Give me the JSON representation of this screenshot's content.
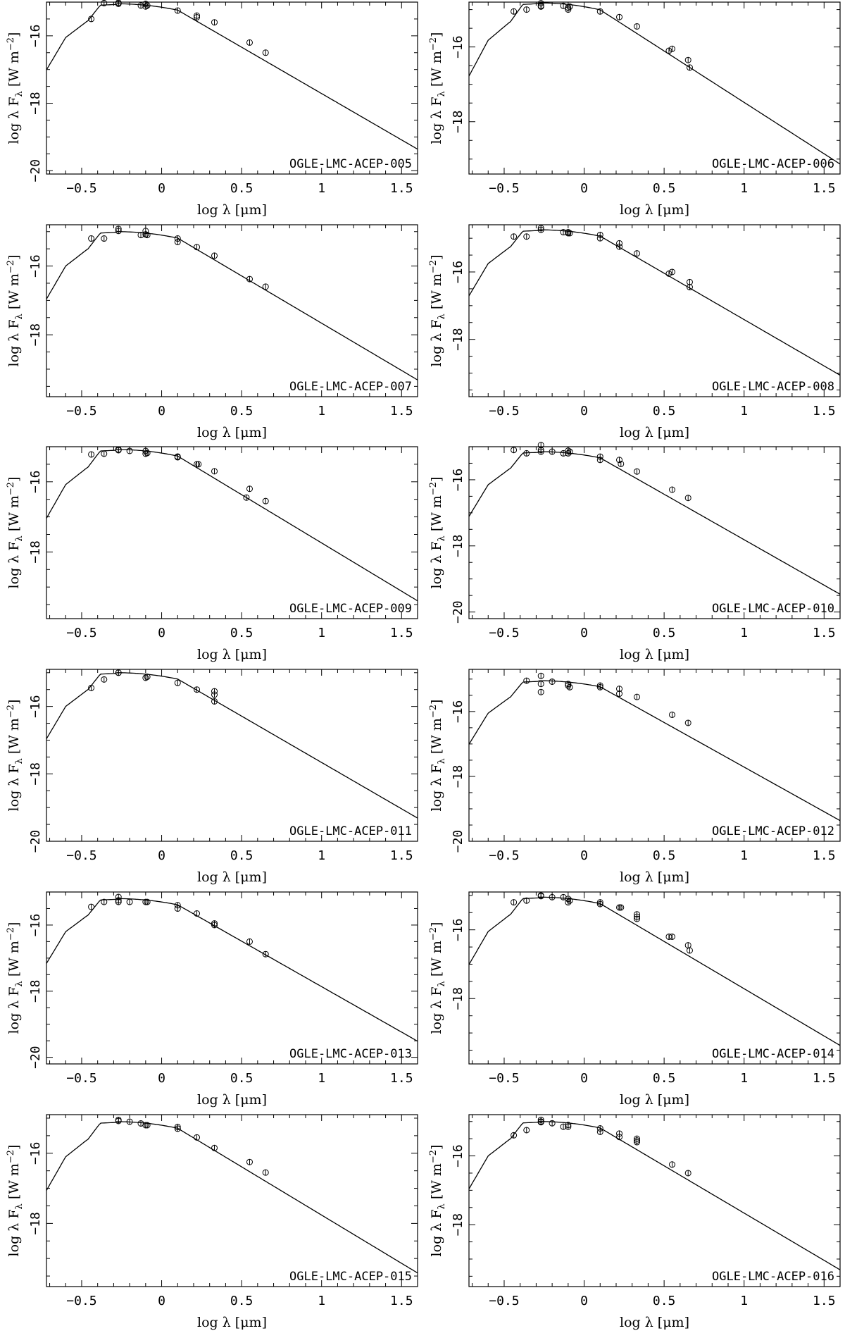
{
  "figure": {
    "xlabel_prefix": "log λ [",
    "xlabel_unit": "μm",
    "xlabel_suffix": "]",
    "ylabel_prefix": "log λ F",
    "ylabel_sub": "λ",
    "ylabel_mid": " [W m",
    "ylabel_sup": "−2",
    "ylabel_end": "]",
    "x_ticks": [
      "−0.5",
      "0",
      "0.5",
      "1",
      "1.5"
    ]
  },
  "chart_data": [
    {
      "type": "scatter",
      "name": "OGLE-LMC-ACEP-005",
      "xlim": [
        -0.72,
        1.6
      ],
      "ylim": [
        -20.1,
        -15.0
      ],
      "y_ticks": [
        -16,
        -18,
        -20
      ],
      "model_peak": -15.05,
      "points": [
        [
          -0.44,
          -15.5
        ],
        [
          -0.36,
          -15.03
        ],
        [
          -0.27,
          -15.02
        ],
        [
          -0.27,
          -15.05
        ],
        [
          -0.13,
          -15.1
        ],
        [
          -0.1,
          -15.05
        ],
        [
          -0.1,
          -15.13
        ],
        [
          -0.09,
          -15.1
        ],
        [
          0.1,
          -15.25
        ],
        [
          0.22,
          -15.4
        ],
        [
          0.22,
          -15.45
        ],
        [
          0.33,
          -15.6
        ],
        [
          0.55,
          -16.2
        ],
        [
          0.65,
          -16.5
        ]
      ]
    },
    {
      "type": "scatter",
      "name": "OGLE-LMC-ACEP-006",
      "xlim": [
        -0.72,
        1.6
      ],
      "ylim": [
        -19.4,
        -14.8
      ],
      "y_ticks": [
        -16,
        -18
      ],
      "model_peak": -14.82,
      "points": [
        [
          -0.44,
          -15.05
        ],
        [
          -0.36,
          -15.0
        ],
        [
          -0.27,
          -14.83
        ],
        [
          -0.27,
          -14.9
        ],
        [
          -0.27,
          -14.92
        ],
        [
          -0.13,
          -14.9
        ],
        [
          -0.1,
          -14.95
        ],
        [
          -0.1,
          -15.0
        ],
        [
          -0.09,
          -14.92
        ],
        [
          0.1,
          -15.05
        ],
        [
          0.22,
          -15.2
        ],
        [
          0.33,
          -15.45
        ],
        [
          0.53,
          -16.1
        ],
        [
          0.55,
          -16.05
        ],
        [
          0.65,
          -16.35
        ],
        [
          0.66,
          -16.55
        ]
      ]
    },
    {
      "type": "scatter",
      "name": "OGLE-LMC-ACEP-007",
      "xlim": [
        -0.72,
        1.6
      ],
      "ylim": [
        -19.8,
        -14.8
      ],
      "y_ticks": [
        -16,
        -18
      ],
      "model_peak": -15.0,
      "points": [
        [
          -0.44,
          -15.2
        ],
        [
          -0.36,
          -15.2
        ],
        [
          -0.27,
          -14.92
        ],
        [
          -0.27,
          -14.98
        ],
        [
          -0.13,
          -15.1
        ],
        [
          -0.1,
          -14.98
        ],
        [
          -0.1,
          -15.08
        ],
        [
          -0.09,
          -15.1
        ],
        [
          0.1,
          -15.2
        ],
        [
          0.1,
          -15.3
        ],
        [
          0.22,
          -15.45
        ],
        [
          0.33,
          -15.7
        ],
        [
          0.55,
          -16.38
        ],
        [
          0.65,
          -16.6
        ]
      ]
    },
    {
      "type": "scatter",
      "name": "OGLE-LMC-ACEP-008",
      "xlim": [
        -0.72,
        1.6
      ],
      "ylim": [
        -19.7,
        -14.6
      ],
      "y_ticks": [
        -16,
        -18
      ],
      "model_peak": -14.75,
      "points": [
        [
          -0.44,
          -14.95
        ],
        [
          -0.36,
          -14.95
        ],
        [
          -0.27,
          -14.7
        ],
        [
          -0.27,
          -14.75
        ],
        [
          -0.13,
          -14.82
        ],
        [
          -0.1,
          -14.85
        ],
        [
          -0.1,
          -14.82
        ],
        [
          -0.09,
          -14.85
        ],
        [
          0.1,
          -14.9
        ],
        [
          0.1,
          -15.0
        ],
        [
          0.22,
          -15.15
        ],
        [
          0.22,
          -15.25
        ],
        [
          0.33,
          -15.45
        ],
        [
          0.53,
          -16.05
        ],
        [
          0.55,
          -16.0
        ],
        [
          0.66,
          -16.3
        ],
        [
          0.66,
          -16.45
        ]
      ]
    },
    {
      "type": "scatter",
      "name": "OGLE-LMC-ACEP-009",
      "xlim": [
        -0.72,
        1.6
      ],
      "ylim": [
        -19.9,
        -15.0
      ],
      "y_ticks": [
        -16,
        -18
      ],
      "model_peak": -15.08,
      "points": [
        [
          -0.44,
          -15.22
        ],
        [
          -0.36,
          -15.2
        ],
        [
          -0.27,
          -15.08
        ],
        [
          -0.27,
          -15.1
        ],
        [
          -0.2,
          -15.12
        ],
        [
          -0.1,
          -15.12
        ],
        [
          -0.1,
          -15.2
        ],
        [
          -0.09,
          -15.18
        ],
        [
          0.1,
          -15.3
        ],
        [
          0.1,
          -15.28
        ],
        [
          0.22,
          -15.5
        ],
        [
          0.23,
          -15.5
        ],
        [
          0.33,
          -15.7
        ],
        [
          0.53,
          -16.45
        ],
        [
          0.55,
          -16.2
        ],
        [
          0.65,
          -16.55
        ]
      ]
    },
    {
      "type": "scatter",
      "name": "OGLE-LMC-ACEP-010",
      "xlim": [
        -0.72,
        1.6
      ],
      "ylim": [
        -20.2,
        -15.0
      ],
      "y_ticks": [
        -16,
        -18,
        -20
      ],
      "model_peak": -15.15,
      "points": [
        [
          -0.44,
          -15.1
        ],
        [
          -0.36,
          -15.2
        ],
        [
          -0.27,
          -14.95
        ],
        [
          -0.27,
          -15.1
        ],
        [
          -0.27,
          -15.15
        ],
        [
          -0.2,
          -15.15
        ],
        [
          -0.13,
          -15.2
        ],
        [
          -0.1,
          -15.12
        ],
        [
          -0.1,
          -15.2
        ],
        [
          -0.09,
          -15.15
        ],
        [
          0.1,
          -15.3
        ],
        [
          0.1,
          -15.4
        ],
        [
          0.22,
          -15.4
        ],
        [
          0.23,
          -15.52
        ],
        [
          0.33,
          -15.75
        ],
        [
          0.55,
          -16.3
        ],
        [
          0.65,
          -16.55
        ]
      ]
    },
    {
      "type": "scatter",
      "name": "OGLE-LMC-ACEP-011",
      "xlim": [
        -0.72,
        1.6
      ],
      "ylim": [
        -20.0,
        -14.9
      ],
      "y_ticks": [
        -16,
        -18,
        -20
      ],
      "model_peak": -15.0,
      "points": [
        [
          -0.44,
          -15.45
        ],
        [
          -0.36,
          -15.2
        ],
        [
          -0.27,
          -15.0
        ],
        [
          -0.27,
          -15.0
        ],
        [
          -0.1,
          -15.15
        ],
        [
          -0.09,
          -15.12
        ],
        [
          0.1,
          -15.3
        ],
        [
          0.22,
          -15.5
        ],
        [
          0.33,
          -15.55
        ],
        [
          0.33,
          -15.65
        ],
        [
          0.33,
          -15.85
        ]
      ]
    },
    {
      "type": "scatter",
      "name": "OGLE-LMC-ACEP-012",
      "xlim": [
        -0.72,
        1.6
      ],
      "ylim": [
        -20.0,
        -14.7
      ],
      "y_ticks": [
        -16,
        -18,
        -20
      ],
      "model_peak": -15.05,
      "points": [
        [
          -0.36,
          -15.05
        ],
        [
          -0.27,
          -14.9
        ],
        [
          -0.27,
          -15.15
        ],
        [
          -0.27,
          -15.4
        ],
        [
          -0.2,
          -15.08
        ],
        [
          -0.1,
          -15.15
        ],
        [
          -0.1,
          -15.2
        ],
        [
          -0.09,
          -15.25
        ],
        [
          0.1,
          -15.2
        ],
        [
          0.1,
          -15.25
        ],
        [
          0.22,
          -15.3
        ],
        [
          0.22,
          -15.45
        ],
        [
          0.33,
          -15.55
        ],
        [
          0.55,
          -16.1
        ],
        [
          0.65,
          -16.35
        ]
      ]
    },
    {
      "type": "scatter",
      "name": "OGLE-LMC-ACEP-013",
      "xlim": [
        -0.72,
        1.6
      ],
      "ylim": [
        -20.2,
        -15.0
      ],
      "y_ticks": [
        -16,
        -18,
        -20
      ],
      "model_peak": -15.2,
      "points": [
        [
          -0.44,
          -15.45
        ],
        [
          -0.36,
          -15.3
        ],
        [
          -0.27,
          -15.15
        ],
        [
          -0.27,
          -15.25
        ],
        [
          -0.27,
          -15.3
        ],
        [
          -0.2,
          -15.3
        ],
        [
          -0.1,
          -15.3
        ],
        [
          -0.09,
          -15.3
        ],
        [
          0.1,
          -15.4
        ],
        [
          0.1,
          -15.5
        ],
        [
          0.22,
          -15.65
        ],
        [
          0.33,
          -15.95
        ],
        [
          0.33,
          -16.0
        ],
        [
          0.55,
          -16.5
        ],
        [
          0.65,
          -16.88
        ]
      ]
    },
    {
      "type": "scatter",
      "name": "OGLE-LMC-ACEP-014",
      "xlim": [
        -0.72,
        1.6
      ],
      "ylim": [
        -19.9,
        -14.9
      ],
      "y_ticks": [
        -16,
        -18
      ],
      "model_peak": -15.05,
      "points": [
        [
          -0.44,
          -15.2
        ],
        [
          -0.36,
          -15.15
        ],
        [
          -0.27,
          -15.0
        ],
        [
          -0.27,
          -15.02
        ],
        [
          -0.2,
          -15.05
        ],
        [
          -0.13,
          -15.05
        ],
        [
          -0.1,
          -15.1
        ],
        [
          -0.1,
          -15.2
        ],
        [
          -0.09,
          -15.15
        ],
        [
          0.1,
          -15.2
        ],
        [
          0.1,
          -15.25
        ],
        [
          0.22,
          -15.35
        ],
        [
          0.23,
          -15.35
        ],
        [
          0.33,
          -15.55
        ],
        [
          0.33,
          -15.62
        ],
        [
          0.33,
          -15.68
        ],
        [
          0.53,
          -16.2
        ],
        [
          0.55,
          -16.2
        ],
        [
          0.65,
          -16.45
        ],
        [
          0.66,
          -16.6
        ]
      ]
    },
    {
      "type": "scatter",
      "name": "OGLE-LMC-ACEP-015",
      "xlim": [
        -0.72,
        1.6
      ],
      "ylim": [
        -19.8,
        -14.9
      ],
      "y_ticks": [
        -16,
        -18
      ],
      "model_peak": -15.1,
      "points": [
        [
          -0.27,
          -15.05
        ],
        [
          -0.27,
          -15.08
        ],
        [
          -0.2,
          -15.1
        ],
        [
          -0.13,
          -15.15
        ],
        [
          -0.1,
          -15.2
        ],
        [
          -0.09,
          -15.2
        ],
        [
          0.1,
          -15.25
        ],
        [
          0.1,
          -15.3
        ],
        [
          0.22,
          -15.55
        ],
        [
          0.33,
          -15.85
        ],
        [
          0.55,
          -16.25
        ],
        [
          0.65,
          -16.55
        ]
      ]
    },
    {
      "type": "scatter",
      "name": "OGLE-LMC-ACEP-016",
      "xlim": [
        -0.72,
        1.6
      ],
      "ylim": [
        -19.8,
        -14.8
      ],
      "y_ticks": [
        -16,
        -18
      ],
      "model_peak": -15.0,
      "points": [
        [
          -0.44,
          -15.4
        ],
        [
          -0.36,
          -15.25
        ],
        [
          -0.27,
          -14.95
        ],
        [
          -0.27,
          -15.0
        ],
        [
          -0.27,
          -15.02
        ],
        [
          -0.2,
          -15.05
        ],
        [
          -0.13,
          -15.15
        ],
        [
          -0.1,
          -15.1
        ],
        [
          -0.1,
          -15.15
        ],
        [
          0.1,
          -15.2
        ],
        [
          0.1,
          -15.3
        ],
        [
          0.22,
          -15.35
        ],
        [
          0.22,
          -15.45
        ],
        [
          0.33,
          -15.5
        ],
        [
          0.33,
          -15.55
        ],
        [
          0.33,
          -15.6
        ],
        [
          0.55,
          -16.25
        ],
        [
          0.65,
          -16.5
        ]
      ]
    }
  ]
}
